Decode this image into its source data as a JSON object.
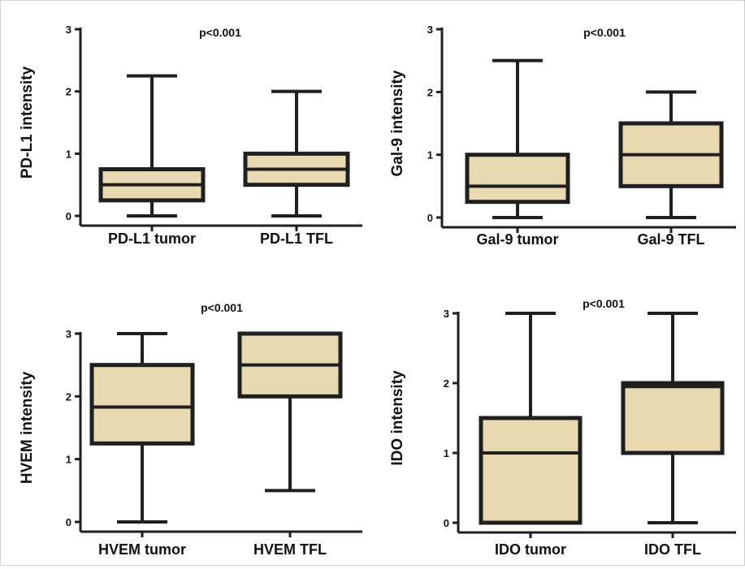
{
  "chart_data": [
    {
      "type": "box",
      "title": "",
      "annotation": "p<0.001",
      "ylabel": "PD-L1 intensity",
      "ylim": [
        0,
        3
      ],
      "yticks": [
        0,
        1,
        2,
        3
      ],
      "box_fill": "#e8d9b0",
      "stroke": "#1f1f1f",
      "boxes": [
        {
          "name": "PD-L1 tumor",
          "min": 0,
          "q1": 0.25,
          "median": 0.5,
          "q3": 0.75,
          "max": 2.25
        },
        {
          "name": "PD-L1 TFL",
          "min": 0,
          "q1": 0.5,
          "median": 0.75,
          "q3": 1.0,
          "max": 2.0
        }
      ]
    },
    {
      "type": "box",
      "title": "",
      "annotation": "p<0.001",
      "ylabel": "Gal-9 intensity",
      "ylim": [
        0,
        3
      ],
      "yticks": [
        0,
        1,
        2,
        3
      ],
      "box_fill": "#e8d9b0",
      "stroke": "#1f1f1f",
      "boxes": [
        {
          "name": "Gal-9 tumor",
          "min": 0,
          "q1": 0.25,
          "median": 0.5,
          "q3": 1.0,
          "max": 2.5
        },
        {
          "name": "Gal-9 TFL",
          "min": 0,
          "q1": 0.5,
          "median": 1.0,
          "q3": 1.5,
          "max": 2.0
        }
      ]
    },
    {
      "type": "box",
      "title": "",
      "annotation": "p<0.001",
      "ylabel": "HVEM intensity",
      "ylim": [
        0,
        3
      ],
      "yticks": [
        0,
        1,
        2,
        3
      ],
      "box_fill": "#e8d9b0",
      "stroke": "#1f1f1f",
      "boxes": [
        {
          "name": "HVEM tumor",
          "min": 0,
          "q1": 1.25,
          "median": 1.83,
          "q3": 2.5,
          "max": 3.0
        },
        {
          "name": "HVEM TFL",
          "min": 0.5,
          "q1": 2.0,
          "median": 2.5,
          "q3": 3.0,
          "max": 3.0
        }
      ]
    },
    {
      "type": "box",
      "title": "",
      "annotation": "p<0.001",
      "ylabel": "IDO intensity",
      "ylim": [
        0,
        3
      ],
      "yticks": [
        0,
        1,
        2,
        3
      ],
      "box_fill": "#e8d9b0",
      "stroke": "#1f1f1f",
      "boxes": [
        {
          "name": "IDO tumor",
          "min": 0,
          "q1": 0,
          "median": 1.0,
          "q3": 1.5,
          "max": 3.0
        },
        {
          "name": "IDO TFL",
          "min": 0,
          "q1": 1.0,
          "median": 1.95,
          "q3": 2.0,
          "max": 3.0
        }
      ]
    }
  ]
}
